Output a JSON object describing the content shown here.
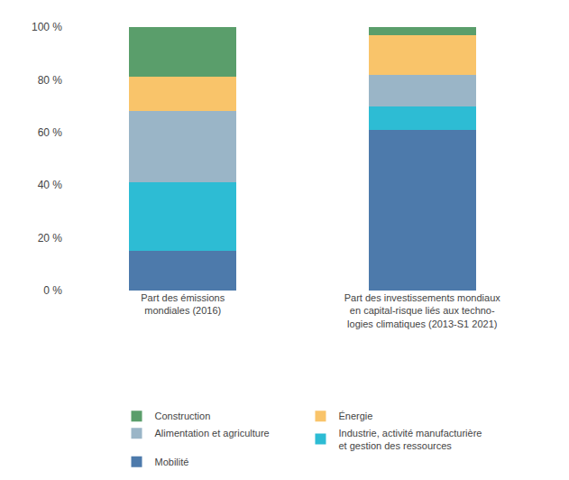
{
  "chart_data": {
    "type": "bar",
    "stacked": true,
    "categories": [
      "Part des émissions\nmondiales (2016)",
      "Part des investissements mondiaux\nen capital-risque liés aux techno-\nlogies climatiques (2013-S1 2021)"
    ],
    "series": [
      {
        "name": "Mobilité",
        "color": "#4d7aab",
        "values": [
          15,
          61
        ]
      },
      {
        "name": "Industrie, activité manufacturière\net gestion des ressources",
        "color": "#2dbcd4",
        "values": [
          26,
          9
        ]
      },
      {
        "name": "Alimentation et agriculture",
        "color": "#9ab5c7",
        "values": [
          27,
          12
        ]
      },
      {
        "name": "Énergie",
        "color": "#f9c46a",
        "values": [
          13,
          15
        ]
      },
      {
        "name": "Construction",
        "color": "#5a9e6b",
        "values": [
          19,
          3
        ]
      }
    ],
    "ylim": [
      0,
      100
    ],
    "yticks": [
      {
        "value": 0,
        "label": "0 %"
      },
      {
        "value": 20,
        "label": "20 %"
      },
      {
        "value": 40,
        "label": "40 %"
      },
      {
        "value": 60,
        "label": "60 %"
      },
      {
        "value": 80,
        "label": "80 %"
      },
      {
        "value": 100,
        "label": "100 %"
      }
    ],
    "grid": false,
    "legend": "bottom"
  }
}
